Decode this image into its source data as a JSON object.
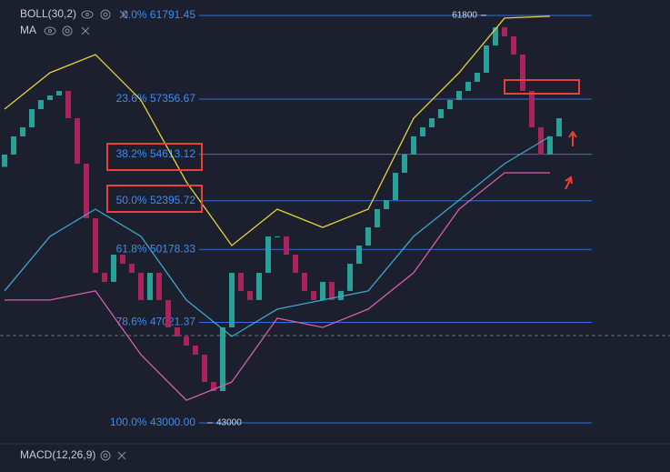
{
  "chart_data": {
    "type": "candlestick",
    "indicators": [
      "BOLL(30,2)",
      "MA"
    ],
    "sub_panel": "MACD(12,26,9)",
    "log_scale": true,
    "ylim": [
      43000,
      61791.45
    ],
    "fib_levels": [
      {
        "value": 61791.45,
        "label": "0.0% 61791.45"
      },
      {
        "value": 57356.67,
        "label": "23.6% 57356.67"
      },
      {
        "value": 54613.12,
        "label": "38.2% 54613.12"
      },
      {
        "value": 52395.72,
        "label": "50.0% 52395.72"
      },
      {
        "value": 50178.33,
        "label": "61.8% 50178.33"
      },
      {
        "value": 47021.37,
        "label": "78.6% 47021.37"
      },
      {
        "value": 43000,
        "label": "100.0% 43000.00"
      }
    ],
    "fib_color": "#2f6fe0",
    "annotations": [
      61800,
      43000
    ],
    "up_color": "#2aa198",
    "down_color": "#a8245a",
    "open": [
      54000,
      54597,
      55487,
      55939,
      56850,
      57312,
      57547,
      57778,
      56391,
      54156,
      51589,
      49145,
      48749,
      49945,
      49540,
      49145,
      47967,
      49145,
      47967,
      46814,
      46436,
      46062,
      45692,
      44595,
      44234,
      46814,
      49145,
      48358,
      47967,
      49145,
      50762,
      50762,
      49945,
      49145,
      48358,
      47967,
      48749,
      47967,
      48358,
      49540,
      50350,
      51174,
      52009,
      52430,
      53720,
      54597,
      55487,
      55939,
      56391,
      56850,
      57312,
      57778,
      58248,
      58721,
      60166,
      61150,
      60656,
      59680,
      57778,
      55939,
      54597,
      55487
    ],
    "close": [
      54597,
      55487,
      55939,
      56850,
      57312,
      57547,
      57778,
      56391,
      54156,
      51589,
      49145,
      48749,
      49945,
      49540,
      49145,
      47967,
      49145,
      47967,
      46814,
      46436,
      46062,
      45692,
      44595,
      44234,
      46814,
      49145,
      48358,
      47967,
      49145,
      50762,
      50762,
      49945,
      49145,
      48358,
      47967,
      48749,
      47967,
      48358,
      49540,
      50350,
      51174,
      52009,
      52430,
      53720,
      54597,
      55487,
      55939,
      56391,
      56850,
      57312,
      57778,
      58248,
      58721,
      60166,
      61150,
      60656,
      59680,
      57778,
      55939,
      54597,
      55487,
      56391
    ],
    "overlays": [
      {
        "color": "#e3d23b",
        "x": [
          0,
          5,
          10,
          15,
          20,
          25,
          30,
          35,
          40,
          45,
          50,
          55,
          60
        ],
        "values": [
          56850,
          58721,
          59680,
          57312,
          53286,
          50350,
          52009,
          51174,
          52009,
          56391,
          58721,
          61645,
          61744
        ]
      },
      {
        "color": "#3aa6c9",
        "x": [
          0,
          5,
          10,
          15,
          20,
          25,
          30,
          35,
          40,
          45,
          50,
          55,
          60
        ],
        "values": [
          48358,
          50762,
          52009,
          50762,
          47967,
          46436,
          47580,
          47967,
          48358,
          50762,
          52430,
          54156,
          55487
        ]
      },
      {
        "color": "#d35fa8",
        "x": [
          0,
          5,
          10,
          15,
          20,
          25,
          30,
          35,
          40,
          45,
          50,
          55,
          60
        ],
        "values": [
          47967,
          47967,
          48358,
          45692,
          43877,
          44595,
          47197,
          46814,
          47580,
          49145,
          52009,
          53720,
          53720
        ]
      }
    ]
  }
}
